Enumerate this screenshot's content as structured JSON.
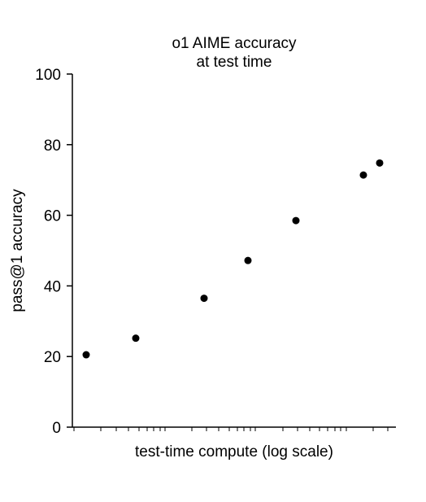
{
  "chart_data": {
    "type": "scatter",
    "title": [
      "o1 AIME accuracy",
      "at test time"
    ],
    "xlabel": "test-time compute (log scale)",
    "ylabel": "pass@1 accuracy",
    "x_scale": "log",
    "x_tick_labels_shown": false,
    "ylim": [
      0,
      100
    ],
    "yticks": [
      0,
      20,
      40,
      60,
      80,
      100
    ],
    "grid": false,
    "legend": "none",
    "marker_color": "#000000",
    "points": [
      {
        "y": 20.5
      },
      {
        "y": 25.2
      },
      {
        "y": 36.5
      },
      {
        "y": 47.2
      },
      {
        "y": 58.5
      },
      {
        "y": 71.4
      },
      {
        "y": 74.8
      }
    ]
  }
}
